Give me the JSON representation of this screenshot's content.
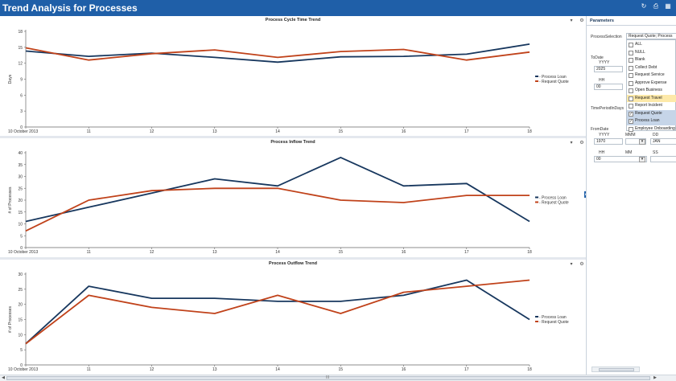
{
  "header": {
    "title": "Trend Analysis for Processes",
    "icons": [
      "refresh-icon",
      "print-icon",
      "export-icon"
    ]
  },
  "colors": {
    "accent": "#1f5fa8",
    "series_loan": "#17375e",
    "series_quote": "#c0421a"
  },
  "charts": [
    {
      "title": "Process Cycle Time Trend",
      "ylabel": "Days",
      "legend": [
        "- Process Loan",
        "- Request Quote"
      ]
    },
    {
      "title": "Process Inflow Trend",
      "ylabel": "# of Processes",
      "legend": [
        "- Process Loan",
        "- Request Quote"
      ]
    },
    {
      "title": "Process Outflow Trend",
      "ylabel": "# of Processes",
      "legend": [
        "- Process Loan",
        "- Request Quote"
      ]
    }
  ],
  "chart_data": [
    {
      "type": "line",
      "title": "Process Cycle Time Trend",
      "ylabel": "Days",
      "x": [
        "10 October 2013",
        "11",
        "12",
        "13",
        "14",
        "15",
        "16",
        "17",
        "18"
      ],
      "yticks": [
        0,
        3,
        6,
        9,
        12,
        15,
        18
      ],
      "ylim": [
        0,
        18
      ],
      "series": [
        {
          "name": "Process Loan",
          "values": [
            14.3,
            13.3,
            13.9,
            13.1,
            12.2,
            13.2,
            13.3,
            13.7,
            15.6
          ]
        },
        {
          "name": "Request Quote",
          "values": [
            14.9,
            12.6,
            13.8,
            14.5,
            13.1,
            14.2,
            14.6,
            12.6,
            14.1
          ]
        }
      ]
    },
    {
      "type": "line",
      "title": "Process Inflow Trend",
      "ylabel": "# of Processes",
      "x": [
        "10 October 2013",
        "11",
        "12",
        "13",
        "14",
        "15",
        "16",
        "17",
        "18"
      ],
      "yticks": [
        0,
        5,
        10,
        15,
        20,
        25,
        30,
        35,
        40
      ],
      "ylim": [
        0,
        40
      ],
      "series": [
        {
          "name": "Process Loan",
          "values": [
            11,
            17,
            23,
            29,
            26,
            38,
            26,
            27,
            11
          ]
        },
        {
          "name": "Request Quote",
          "values": [
            7,
            20,
            24,
            25,
            25,
            20,
            19,
            22,
            22
          ]
        }
      ]
    },
    {
      "type": "line",
      "title": "Process Outflow Trend",
      "ylabel": "# of Processes",
      "x": [
        "10 October 2013",
        "11",
        "12",
        "13",
        "14",
        "15",
        "16",
        "17",
        "18"
      ],
      "yticks": [
        0,
        5,
        10,
        15,
        20,
        25,
        30
      ],
      "ylim": [
        0,
        30
      ],
      "series": [
        {
          "name": "Process Loan",
          "values": [
            7,
            26,
            22,
            22,
            21,
            21,
            23,
            28,
            15
          ]
        },
        {
          "name": "Request Quote",
          "values": [
            7,
            23,
            19,
            17,
            23,
            17,
            24,
            26,
            28
          ]
        }
      ]
    }
  ],
  "parameters": {
    "title": "Parameters",
    "process_selection_label": "ProcessSelection",
    "process_selection_value": "Request Quote; Process",
    "todate_label": "ToDate",
    "todate_yyyy_label": "YYYY",
    "todate_yyyy_value": "2025",
    "todate_hh_label": "HH",
    "todate_hh_value": "00",
    "timeperiod_label": "TimePeriodInDays",
    "fromdate_label": "FromDate",
    "fromdate_yyyy_label": "YYYY",
    "fromdate_mmm_label": "MMM",
    "fromdate_dd_label": "DD",
    "fromdate_yyyy_value": "1970",
    "fromdate_mmm_value": "",
    "fromdate_dd_value": "JAN",
    "fromdate_hh_label": "HH",
    "fromdate_mm_label": "MM",
    "fromdate_ss_label": "SS",
    "fromdate_hh_value": "00",
    "options": [
      {
        "label": "ALL",
        "checked": false,
        "state": ""
      },
      {
        "label": "NULL",
        "checked": false,
        "state": ""
      },
      {
        "label": "Blank",
        "checked": false,
        "state": ""
      },
      {
        "label": "Collect Debt",
        "checked": false,
        "state": ""
      },
      {
        "label": "Request Service",
        "checked": false,
        "state": ""
      },
      {
        "label": "Approve Expense",
        "checked": false,
        "state": ""
      },
      {
        "label": "Open Business",
        "checked": false,
        "state": ""
      },
      {
        "label": "Request Travel",
        "checked": false,
        "state": "hover"
      },
      {
        "label": "Report Incident",
        "checked": false,
        "state": ""
      },
      {
        "label": "Request Quote",
        "checked": true,
        "state": "checked"
      },
      {
        "label": "Process Loan",
        "checked": true,
        "state": "checked"
      },
      {
        "label": "Employee Onboarding",
        "checked": false,
        "state": ""
      }
    ]
  },
  "scrollbar": {
    "grip": "III"
  }
}
